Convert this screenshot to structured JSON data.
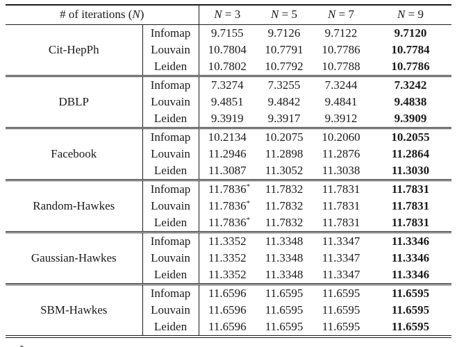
{
  "table": {
    "header": {
      "iter_pre": "# of iterations (",
      "iter_var": "N",
      "iter_post": ")",
      "cols": [
        {
          "v": "N",
          "rest": " = 3"
        },
        {
          "v": "N",
          "rest": " = 5"
        },
        {
          "v": "N",
          "rest": " = 7"
        },
        {
          "v": "N",
          "rest": " = 9"
        }
      ]
    },
    "blocks": [
      {
        "dataset": "Cit-HepPh",
        "rows": [
          {
            "method": "Infomap",
            "n3": "9.7155",
            "n5": "9.7126",
            "n7": "9.7122",
            "n9": "9.7120"
          },
          {
            "method": "Louvain",
            "n3": "10.7804",
            "n5": "10.7791",
            "n7": "10.7786",
            "n9": "10.7784"
          },
          {
            "method": "Leiden",
            "n3": "10.7802",
            "n5": "10.7792",
            "n7": "10.7788",
            "n9": "10.7786"
          }
        ]
      },
      {
        "dataset": "DBLP",
        "rows": [
          {
            "method": "Infomap",
            "n3": "7.3274",
            "n5": "7.3255",
            "n7": "7.3244",
            "n9": "7.3242"
          },
          {
            "method": "Louvain",
            "n3": "9.4851",
            "n5": "9.4842",
            "n7": "9.4841",
            "n9": "9.4838"
          },
          {
            "method": "Leiden",
            "n3": "9.3919",
            "n5": "9.3917",
            "n7": "9.3912",
            "n9": "9.3909"
          }
        ]
      },
      {
        "dataset": "Facebook",
        "rows": [
          {
            "method": "Infomap",
            "n3": "10.2134",
            "n5": "10.2075",
            "n7": "10.2060",
            "n9": "10.2055"
          },
          {
            "method": "Louvain",
            "n3": "11.2946",
            "n5": "11.2898",
            "n7": "11.2876",
            "n9": "11.2864"
          },
          {
            "method": "Leiden",
            "n3": "11.3087",
            "n5": "11.3052",
            "n7": "11.3038",
            "n9": "11.3030"
          }
        ]
      },
      {
        "dataset": "Random-Hawkes",
        "rows": [
          {
            "method": "Infomap",
            "n3": "11.7836",
            "n3_star": "*",
            "n5": "11.7832",
            "n7": "11.7831",
            "n9": "11.7831"
          },
          {
            "method": "Louvain",
            "n3": "11.7836",
            "n3_star": "*",
            "n5": "11.7832",
            "n7": "11.7831",
            "n9": "11.7831"
          },
          {
            "method": "Leiden",
            "n3": "11.7836",
            "n3_star": "*",
            "n5": "11.7832",
            "n7": "11.7831",
            "n9": "11.7831"
          }
        ]
      },
      {
        "dataset": "Gaussian-Hawkes",
        "rows": [
          {
            "method": "Infomap",
            "n3": "11.3352",
            "n5": "11.3348",
            "n7": "11.3347",
            "n9": "11.3346"
          },
          {
            "method": "Louvain",
            "n3": "11.3352",
            "n5": "11.3348",
            "n7": "11.3347",
            "n9": "11.3346"
          },
          {
            "method": "Leiden",
            "n3": "11.3352",
            "n5": "11.3348",
            "n7": "11.3347",
            "n9": "11.3346"
          }
        ]
      },
      {
        "dataset": "SBM-Hawkes",
        "rows": [
          {
            "method": "Infomap",
            "n3": "11.6596",
            "n5": "11.6595",
            "n7": "11.6595",
            "n9": "11.6595"
          },
          {
            "method": "Louvain",
            "n3": "11.6596",
            "n5": "11.6595",
            "n7": "11.6595",
            "n9": "11.6595"
          },
          {
            "method": "Leiden",
            "n3": "11.6596",
            "n5": "11.6595",
            "n7": "11.6595",
            "n9": "11.6595"
          }
        ]
      }
    ],
    "footnote_fragment": "*"
  }
}
